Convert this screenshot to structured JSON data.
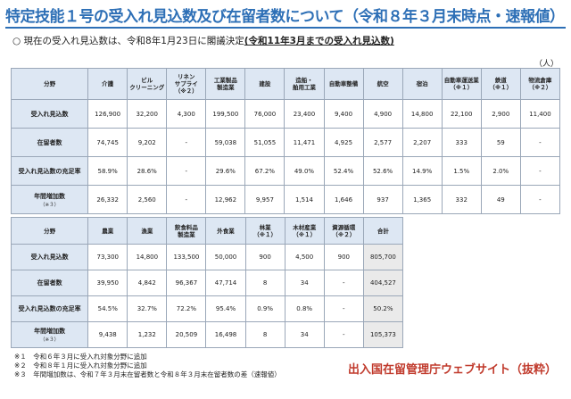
{
  "title": "特定技能１号の受入れ見込数及び在留者数について（令和８年３月末時点・速報値）",
  "lead": {
    "marker": "○",
    "text": "現在の受入れ見込数は、令和8年1月23日に閣議決定",
    "emphasis": "(令和11年3月までの受入れ見込数)"
  },
  "unit": "（人）",
  "table1": {
    "headers": [
      "分野",
      "介護",
      "ビル\nクリーニング",
      "リネン\nサプライ\n（※２）",
      "工業製品\n製造業",
      "建設",
      "造船・\n舶用工業",
      "自動車整備",
      "航空",
      "宿泊",
      "自動車運送業\n（※１）",
      "鉄道\n（※１）",
      "物流倉庫\n（※２）"
    ],
    "rows": [
      {
        "label": "受入れ見込数",
        "sub": "",
        "cells": [
          "126,900",
          "32,200",
          "4,300",
          "199,500",
          "76,000",
          "23,400",
          "9,400",
          "4,900",
          "14,800",
          "22,100",
          "2,900",
          "11,400"
        ]
      },
      {
        "label": "在留者数",
        "sub": "",
        "cells": [
          "74,745",
          "9,202",
          "-",
          "59,038",
          "51,055",
          "11,471",
          "4,925",
          "2,577",
          "2,207",
          "333",
          "59",
          "-"
        ]
      },
      {
        "label": "受入れ見込数の充足率",
        "sub": "",
        "cells": [
          "58.9%",
          "28.6%",
          "-",
          "29.6%",
          "67.2%",
          "49.0%",
          "52.4%",
          "52.6%",
          "14.9%",
          "1.5%",
          "2.0%",
          "-"
        ]
      },
      {
        "label": "年間増加数",
        "sub": "（※３）",
        "cells": [
          "26,332",
          "2,560",
          "-",
          "12,962",
          "9,957",
          "1,514",
          "1,646",
          "937",
          "1,365",
          "332",
          "49",
          "-"
        ]
      }
    ]
  },
  "table2": {
    "headers": [
      "分野",
      "農業",
      "漁業",
      "飲食料品\n製造業",
      "外食業",
      "林業\n（※１）",
      "木材産業\n（※１）",
      "資源循環\n（※２）",
      "合計"
    ],
    "rows": [
      {
        "label": "受入れ見込数",
        "sub": "",
        "cells": [
          "73,300",
          "14,800",
          "133,500",
          "50,000",
          "900",
          "4,500",
          "900",
          "805,700"
        ]
      },
      {
        "label": "在留者数",
        "sub": "",
        "cells": [
          "39,950",
          "4,842",
          "96,367",
          "47,714",
          "8",
          "34",
          "-",
          "404,527"
        ]
      },
      {
        "label": "受入れ見込数の充足率",
        "sub": "",
        "cells": [
          "54.5%",
          "32.7%",
          "72.2%",
          "95.4%",
          "0.9%",
          "0.8%",
          "-",
          "50.2%"
        ]
      },
      {
        "label": "年間増加数",
        "sub": "（※３）",
        "cells": [
          "9,438",
          "1,232",
          "20,509",
          "16,498",
          "8",
          "34",
          "-",
          "105,373"
        ]
      }
    ]
  },
  "notes": [
    "※１　令和６年３月に受入れ対象分野に追加",
    "※２　令和８年１月に受入れ対象分野に追加",
    "※３　年間増加数は、令和７年３月末在留者数と令和８年３月末在留者数の差（速報値）"
  ],
  "source": "出入国在留管理庁ウェブサイト（抜粋）",
  "colors": {
    "title": "#2d6fb6",
    "header_fill": "#dde7f3",
    "source": "#c0392b"
  }
}
